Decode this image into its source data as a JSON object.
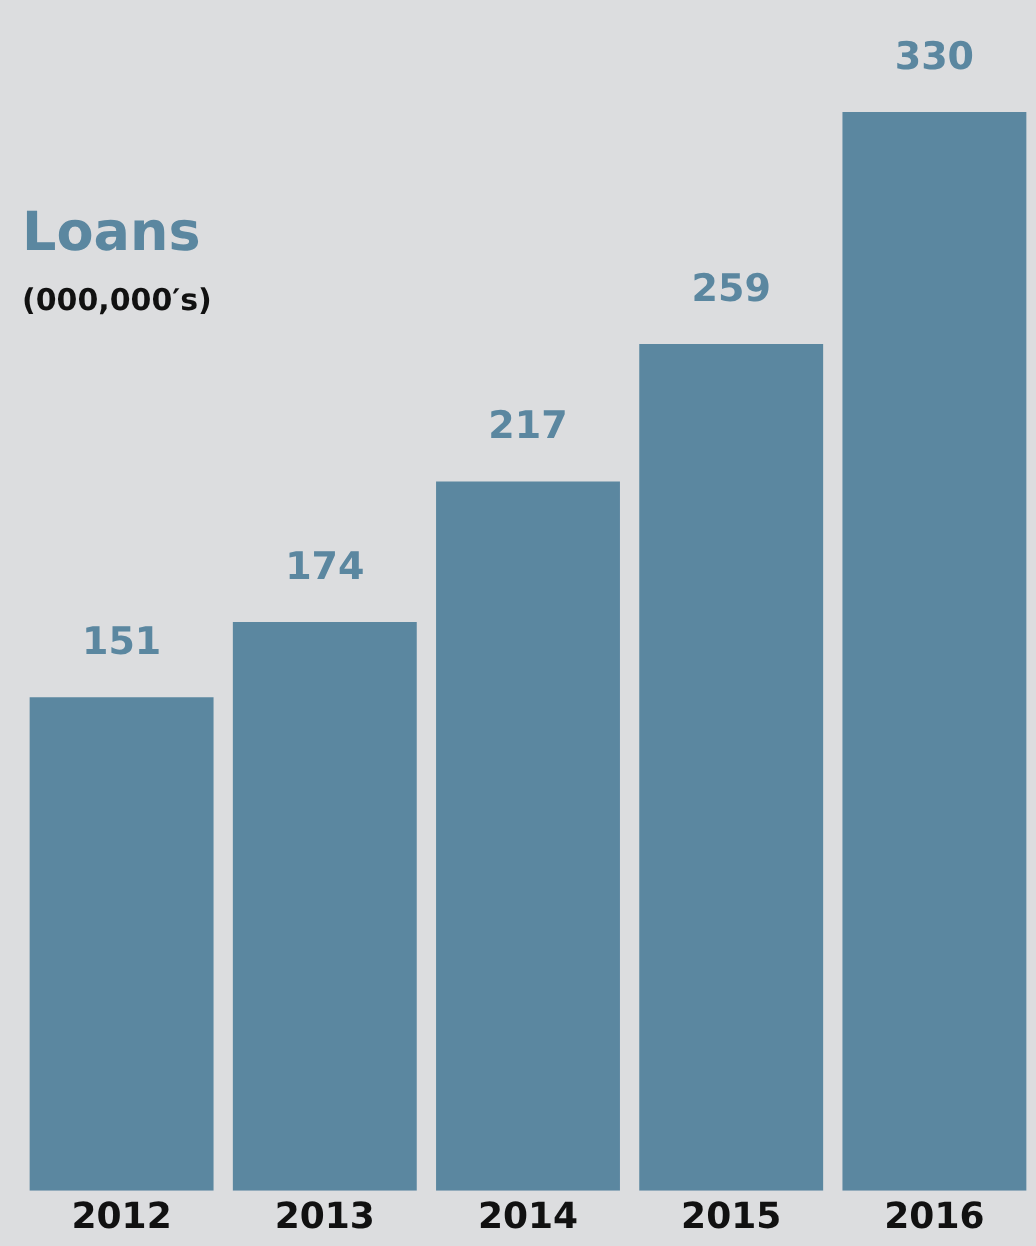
{
  "chart_data": {
    "type": "bar",
    "title": "Loans",
    "subtitle": "(000,000′s)",
    "categories": [
      "2012",
      "2013",
      "2014",
      "2015",
      "2016"
    ],
    "values": [
      151,
      174,
      217,
      259,
      330
    ],
    "color": "#5b87a0",
    "ylim": [
      0,
      330
    ],
    "data_labels": true,
    "grid": false,
    "legend": false
  }
}
